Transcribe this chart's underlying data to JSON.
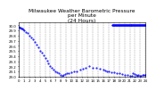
{
  "title": "Milwaukee Weather Barometric Pressure\nper Minute\n(24 Hours)",
  "title_fontsize": 4.2,
  "background_color": "#ffffff",
  "plot_color": "#0000ff",
  "markersize": 1.0,
  "ylim": [
    29.0,
    30.05
  ],
  "xlim": [
    0,
    1440
  ],
  "yticks": [
    29.0,
    29.1,
    29.2,
    29.3,
    29.4,
    29.5,
    29.6,
    29.7,
    29.8,
    29.9,
    30.0
  ],
  "xtick_positions": [
    0,
    60,
    120,
    180,
    240,
    300,
    360,
    420,
    480,
    540,
    600,
    660,
    720,
    780,
    840,
    900,
    960,
    1020,
    1080,
    1140,
    1200,
    1260,
    1320,
    1380,
    1440
  ],
  "xtick_labels": [
    "0",
    "1",
    "2",
    "3",
    "4",
    "5",
    "6",
    "7",
    "8",
    "9",
    "10",
    "11",
    "12",
    "13",
    "14",
    "15",
    "16",
    "17",
    "18",
    "19",
    "20",
    "21",
    "22",
    "23",
    "24"
  ],
  "tick_fontsize": 2.8,
  "grid_color": "#999999",
  "grid_linestyle": "--",
  "grid_linewidth": 0.35,
  "seg1_x": [
    0,
    10,
    20,
    30,
    40,
    50,
    60,
    80,
    100,
    120,
    140,
    160,
    180,
    200,
    220,
    240,
    260,
    280,
    300,
    320,
    340,
    360,
    380,
    400,
    420,
    440,
    460,
    480,
    500
  ],
  "seg1_y": [
    29.97,
    29.96,
    29.95,
    29.94,
    29.93,
    29.92,
    29.9,
    29.87,
    29.84,
    29.8,
    29.76,
    29.72,
    29.67,
    29.62,
    29.57,
    29.51,
    29.46,
    29.41,
    29.36,
    29.31,
    29.26,
    29.21,
    29.17,
    29.13,
    29.1,
    29.08,
    29.06,
    29.04,
    29.02
  ],
  "seg2_x": [
    510,
    530,
    550,
    570,
    600,
    630,
    660,
    700,
    730,
    760,
    800,
    840,
    880,
    920,
    960
  ],
  "seg2_y": [
    29.04,
    29.05,
    29.06,
    29.07,
    29.08,
    29.1,
    29.11,
    29.13,
    29.15,
    29.18,
    29.2,
    29.18,
    29.17,
    29.15,
    29.13
  ],
  "seg3_x": [
    980,
    1000,
    1020,
    1050,
    1080,
    1110,
    1140,
    1170,
    1200,
    1230,
    1260,
    1290,
    1320,
    1350,
    1380,
    1410,
    1440
  ],
  "seg3_y": [
    29.12,
    29.11,
    29.1,
    29.09,
    29.08,
    29.07,
    29.06,
    29.05,
    29.04,
    29.03,
    29.02,
    29.01,
    29.0,
    29.01,
    29.02,
    29.03,
    29.04
  ],
  "bar_x": [
    1060,
    1065,
    1070,
    1075,
    1080,
    1085,
    1090,
    1095,
    1100,
    1105,
    1110,
    1115,
    1120,
    1125,
    1130,
    1135,
    1140,
    1145,
    1150,
    1155,
    1160,
    1165,
    1170,
    1175,
    1180,
    1185,
    1190,
    1195,
    1200,
    1205,
    1210,
    1215,
    1220,
    1225,
    1230,
    1235,
    1240,
    1245,
    1250,
    1255,
    1260,
    1265,
    1270,
    1275,
    1280,
    1285,
    1290,
    1295,
    1300,
    1305,
    1310,
    1315,
    1320,
    1325,
    1330,
    1335,
    1340,
    1345,
    1350,
    1355,
    1360,
    1365,
    1370,
    1375,
    1380,
    1385,
    1390,
    1395,
    1400,
    1405,
    1410,
    1415,
    1420,
    1425,
    1430,
    1435,
    1440
  ],
  "bar_y_val": 30.01,
  "low_x": [
    1300,
    1320,
    1340,
    1360,
    1390,
    1420,
    1440
  ],
  "low_y": [
    29.06,
    29.05,
    29.04,
    29.03,
    29.02,
    29.03,
    29.04
  ]
}
